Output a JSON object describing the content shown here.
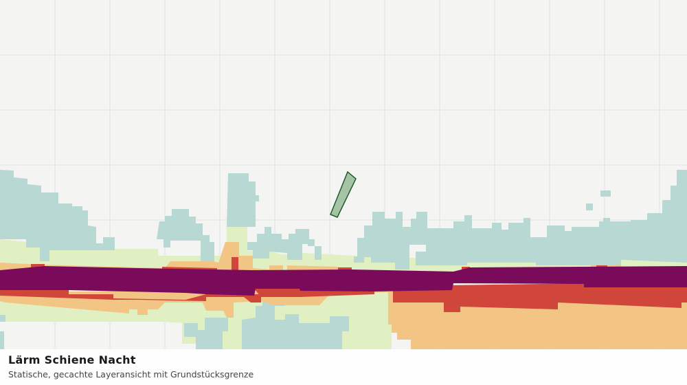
{
  "legend_panel": {
    "title": "Lärm Schiene Nacht",
    "subtitle": "Statische, gecachte Layeransicht mit Grundstücksgrenze"
  }
}
